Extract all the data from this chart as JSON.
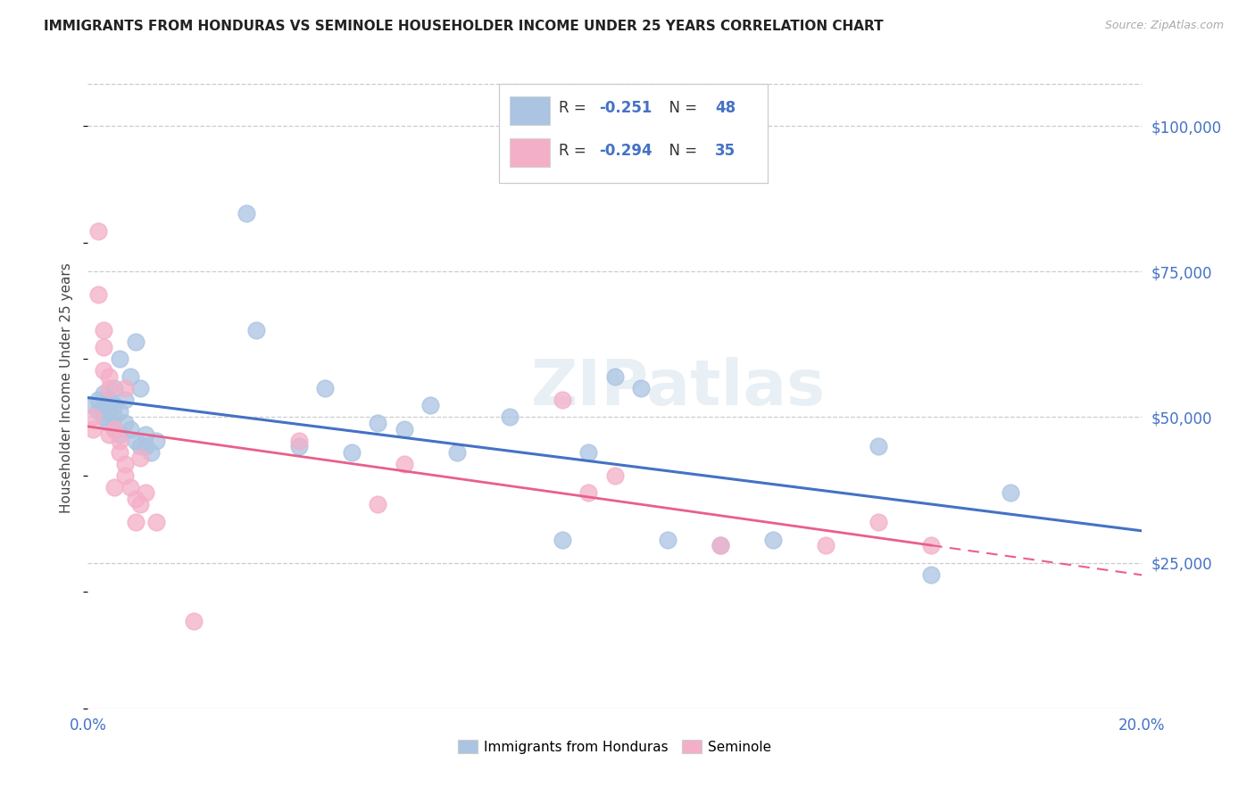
{
  "title": "IMMIGRANTS FROM HONDURAS VS SEMINOLE HOUSEHOLDER INCOME UNDER 25 YEARS CORRELATION CHART",
  "source": "Source: ZipAtlas.com",
  "ylabel": "Householder Income Under 25 years",
  "right_ytick_labels": [
    "$25,000",
    "$50,000",
    "$75,000",
    "$100,000"
  ],
  "right_ytick_values": [
    25000,
    50000,
    75000,
    100000
  ],
  "ymin": 0,
  "ymax": 110000,
  "xmin": 0.0,
  "xmax": 0.2,
  "blue_R": "-0.251",
  "blue_N": "48",
  "pink_R": "-0.294",
  "pink_N": "35",
  "blue_color": "#aac4e2",
  "pink_color": "#f4afc8",
  "blue_line_color": "#4472c4",
  "pink_line_color": "#e8608a",
  "legend_label_blue": "Immigrants from Honduras",
  "legend_label_pink": "Seminole",
  "watermark": "ZIPatlas",
  "blue_scatter_x": [
    0.001,
    0.002,
    0.002,
    0.003,
    0.003,
    0.003,
    0.004,
    0.004,
    0.004,
    0.005,
    0.005,
    0.005,
    0.005,
    0.006,
    0.006,
    0.006,
    0.007,
    0.007,
    0.008,
    0.008,
    0.009,
    0.009,
    0.01,
    0.01,
    0.011,
    0.011,
    0.012,
    0.013,
    0.03,
    0.032,
    0.04,
    0.045,
    0.05,
    0.055,
    0.06,
    0.065,
    0.07,
    0.08,
    0.09,
    0.095,
    0.1,
    0.105,
    0.11,
    0.12,
    0.13,
    0.15,
    0.16,
    0.175
  ],
  "blue_scatter_y": [
    52000,
    51000,
    53000,
    50000,
    52000,
    54000,
    49000,
    51000,
    53000,
    48000,
    50000,
    52000,
    55000,
    47000,
    51000,
    60000,
    49000,
    53000,
    48000,
    57000,
    46000,
    63000,
    45000,
    55000,
    45000,
    47000,
    44000,
    46000,
    85000,
    65000,
    45000,
    55000,
    44000,
    49000,
    48000,
    52000,
    44000,
    50000,
    29000,
    44000,
    57000,
    55000,
    29000,
    28000,
    29000,
    45000,
    23000,
    37000
  ],
  "pink_scatter_x": [
    0.001,
    0.001,
    0.002,
    0.002,
    0.003,
    0.003,
    0.003,
    0.004,
    0.004,
    0.004,
    0.005,
    0.005,
    0.006,
    0.006,
    0.007,
    0.007,
    0.007,
    0.008,
    0.009,
    0.009,
    0.01,
    0.01,
    0.011,
    0.013,
    0.02,
    0.04,
    0.055,
    0.06,
    0.09,
    0.095,
    0.1,
    0.12,
    0.14,
    0.15,
    0.16
  ],
  "pink_scatter_y": [
    48000,
    50000,
    82000,
    71000,
    62000,
    58000,
    65000,
    55000,
    57000,
    47000,
    48000,
    38000,
    46000,
    44000,
    42000,
    55000,
    40000,
    38000,
    36000,
    32000,
    35000,
    43000,
    37000,
    32000,
    15000,
    46000,
    35000,
    42000,
    53000,
    37000,
    40000,
    28000,
    28000,
    32000,
    28000
  ]
}
